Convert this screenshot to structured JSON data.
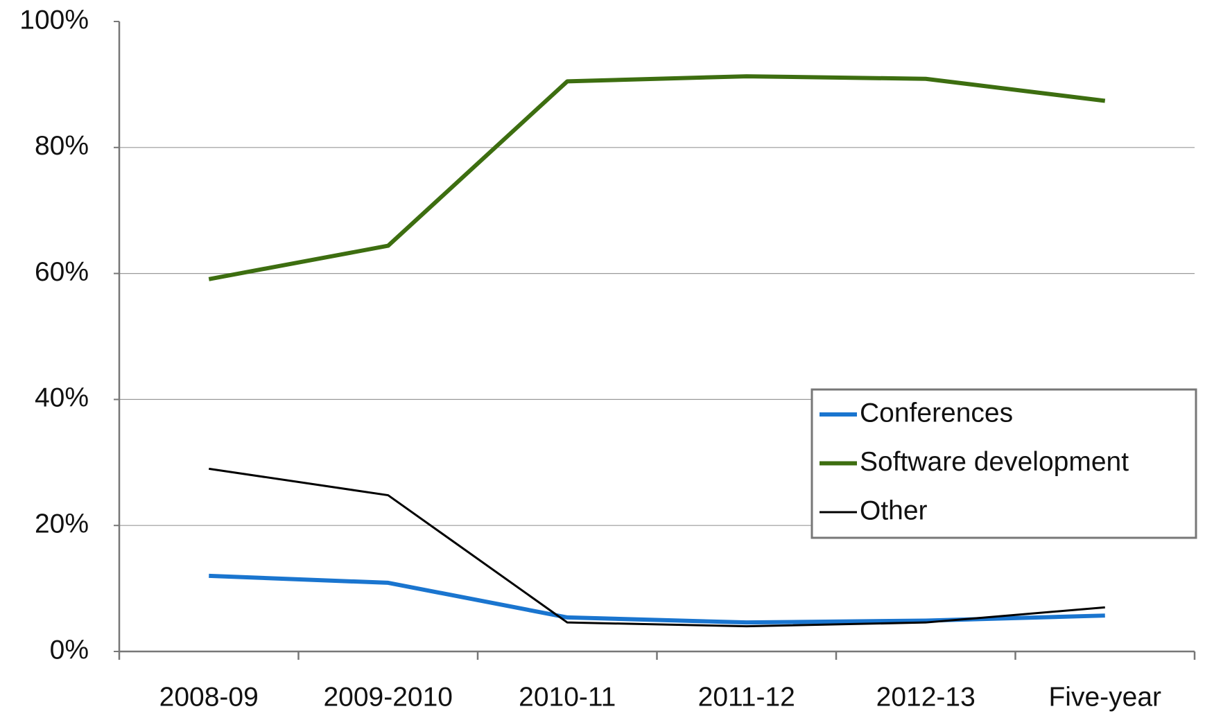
{
  "chart_data": {
    "type": "line",
    "categories": [
      "2008-09",
      "2009-2010",
      "2010-11",
      "2011-12",
      "2012-13",
      "Five-year"
    ],
    "series": [
      {
        "name": "Conferences",
        "color": "#1a75cf",
        "values": [
          12.0,
          10.9,
          5.4,
          4.6,
          4.9,
          5.7
        ]
      },
      {
        "name": "Software development",
        "color": "#3d6e10",
        "values": [
          59.1,
          64.4,
          90.5,
          91.3,
          90.9,
          87.4
        ]
      },
      {
        "name": "Other",
        "color": "#000000",
        "values": [
          29.0,
          24.8,
          4.6,
          4.0,
          4.6,
          7.0
        ]
      }
    ],
    "ylim": [
      0,
      100
    ],
    "yticks": [
      {
        "value": 0,
        "label": "0%"
      },
      {
        "value": 20,
        "label": "20%"
      },
      {
        "value": 40,
        "label": "40%"
      },
      {
        "value": 60,
        "label": "60%"
      },
      {
        "value": 80,
        "label": "80%"
      },
      {
        "value": 100,
        "label": "100%"
      }
    ],
    "grid": true,
    "legend": "right"
  }
}
